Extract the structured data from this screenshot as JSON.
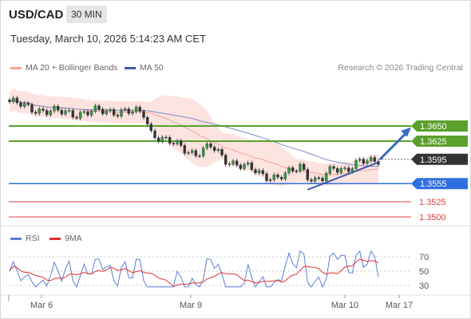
{
  "header": {
    "symbol": "USD/CAD",
    "timeframe": "30 MIN"
  },
  "datetime": "Tuesday, March 10, 2026 5:14:23 AM CET",
  "legend": [
    {
      "label": "MA 20 + Bollinger Bands",
      "color": "#f4a39a"
    },
    {
      "label": "MA 50",
      "color": "#3b5aa8"
    }
  ],
  "credit": "Research © 2026 Trading Central",
  "rsi_legend": [
    {
      "label": "RSI",
      "color": "#5b7fd6"
    },
    {
      "label": "9MA",
      "color": "#e03030"
    }
  ],
  "chart_data": [
    {
      "type": "candlestick",
      "title": "USD/CAD",
      "ylim": [
        1.3485,
        1.3705
      ],
      "x_labels": [
        "Mar 6",
        "Mar 9",
        "Mar 10",
        "Mar 17"
      ],
      "close_start": 1.369,
      "close_end": 1.3595,
      "price_levels": [
        {
          "value": "1.3650",
          "kind": "resistance",
          "color": "#5aa02c"
        },
        {
          "value": "1.3625",
          "kind": "resistance",
          "color": "#5aa02c"
        },
        {
          "value": "1.3595",
          "kind": "last",
          "color": "#333333"
        },
        {
          "value": "1.3555",
          "kind": "support",
          "color": "#2f6fe0"
        },
        {
          "value": "1.3525",
          "kind": "support",
          "color": "#e04040"
        },
        {
          "value": "1.3500",
          "kind": "support",
          "color": "#e04040"
        }
      ],
      "annotations": [
        "rising trendline from Mar 9 low",
        "bullish arrow towards 1.3650"
      ]
    },
    {
      "type": "line",
      "title": "RSI",
      "ylim": [
        20,
        80
      ],
      "yticks": [
        "70",
        "50",
        "30"
      ],
      "series": [
        {
          "name": "RSI",
          "color": "#5b7fd6",
          "start": 68,
          "end": 60
        },
        {
          "name": "9MA",
          "color": "#e03030",
          "start": 66,
          "end": 59
        }
      ]
    }
  ]
}
